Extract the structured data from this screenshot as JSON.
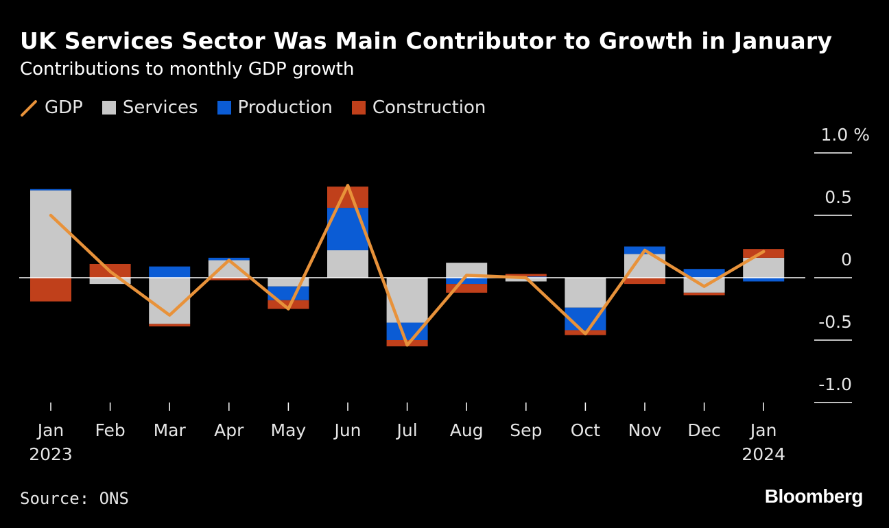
{
  "title": "UK Services Sector Was Main Contributor to Growth in January",
  "subtitle": "Contributions to monthly GDP growth",
  "legend": {
    "gdp": "GDP",
    "services": "Services",
    "production": "Production",
    "construction": "Construction"
  },
  "source": "Source: ONS",
  "brand": "Bloomberg",
  "colors": {
    "gdp": "#e8923a",
    "services": "#c8c8c8",
    "production": "#0b5cd5",
    "construction": "#c0401b",
    "background": "#000000",
    "axis": "#ffffff"
  },
  "chart_data": {
    "type": "bar",
    "stacked": true,
    "title": "UK Services Sector Was Main Contributor to Growth in January",
    "subtitle": "Contributions to monthly GDP growth",
    "xlabel": "",
    "ylabel": "%",
    "ylim": [
      -1.0,
      1.0
    ],
    "yticks": [
      1.0,
      0.5,
      0,
      -0.5,
      -1.0
    ],
    "ytick_labels": [
      "1.0 %",
      "0.5",
      "0",
      "-0.5",
      "-1.0"
    ],
    "categories": [
      "Jan",
      "Feb",
      "Mar",
      "Apr",
      "May",
      "Jun",
      "Jul",
      "Aug",
      "Sep",
      "Oct",
      "Nov",
      "Dec",
      "Jan"
    ],
    "category_sublabels": [
      "2023",
      "",
      "",
      "",
      "",
      "",
      "",
      "",
      "",
      "",
      "",
      "",
      "2024"
    ],
    "legend_position": "top-left",
    "series": [
      {
        "name": "Services",
        "kind": "bar",
        "values": [
          0.7,
          -0.05,
          -0.37,
          0.14,
          -0.07,
          0.22,
          -0.36,
          0.12,
          -0.03,
          -0.24,
          0.19,
          -0.12,
          0.16
        ]
      },
      {
        "name": "Production",
        "kind": "bar",
        "values": [
          0.01,
          0.0,
          0.09,
          0.02,
          -0.11,
          0.34,
          -0.14,
          -0.05,
          0.01,
          -0.18,
          0.06,
          0.07,
          -0.03
        ]
      },
      {
        "name": "Construction",
        "kind": "bar",
        "values": [
          -0.19,
          0.11,
          -0.02,
          -0.02,
          -0.07,
          0.17,
          -0.05,
          -0.07,
          0.02,
          -0.04,
          -0.05,
          -0.02,
          0.07
        ]
      },
      {
        "name": "GDP",
        "kind": "line",
        "values": [
          0.5,
          0.05,
          -0.3,
          0.14,
          -0.25,
          0.74,
          -0.54,
          0.02,
          0.0,
          -0.45,
          0.22,
          -0.07,
          0.21
        ]
      }
    ]
  }
}
